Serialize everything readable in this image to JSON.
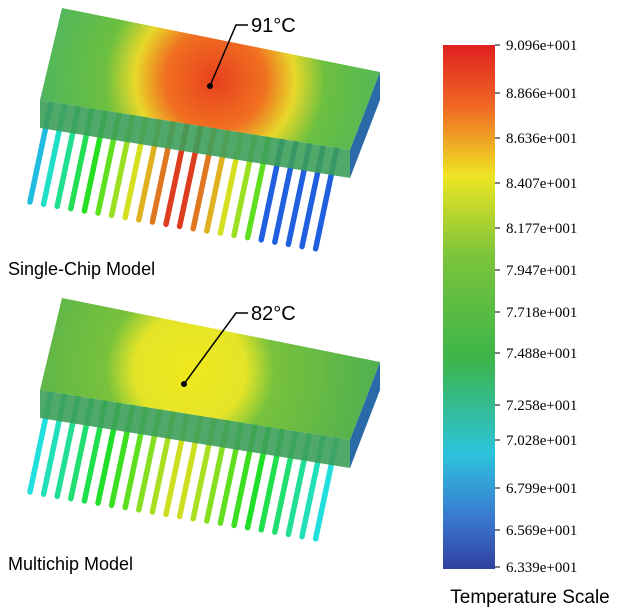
{
  "panels": [
    {
      "label": "Single-Chip Model",
      "annotation": "91°C"
    },
    {
      "label": "Multichip Model",
      "annotation": "82°C"
    }
  ],
  "color_scale": {
    "title": "Temperature Scale",
    "labels": [
      "9.096e+001",
      "8.866e+001",
      "8.636e+001",
      "8.407e+001",
      "8.177e+001",
      "7.947e+001",
      "7.718e+001",
      "7.488e+001",
      "7.258e+001",
      "7.028e+001",
      "6.799e+001",
      "6.569e+001",
      "6.339e+001"
    ]
  }
}
